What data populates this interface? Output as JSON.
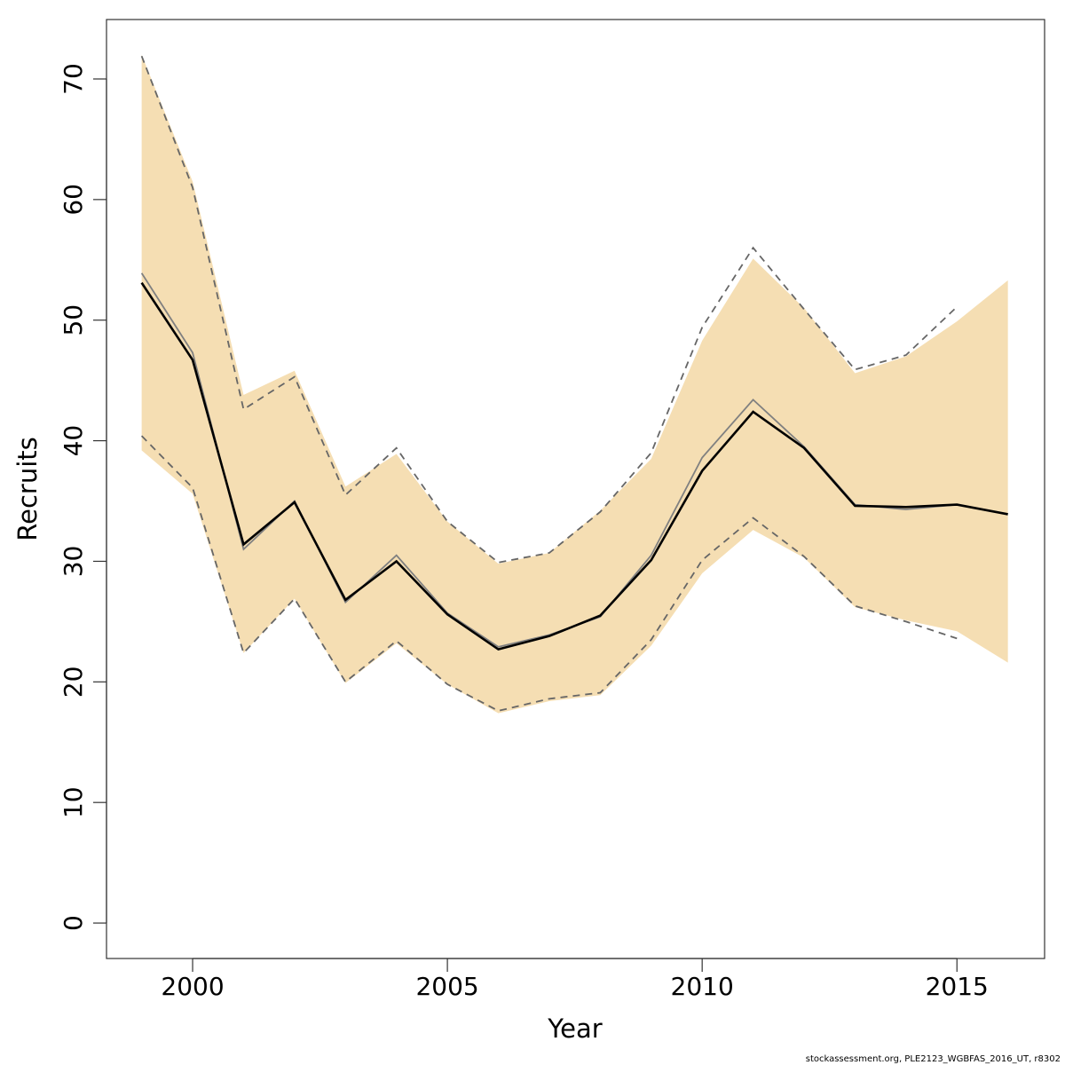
{
  "chart_data": {
    "type": "line",
    "x_label": "Year",
    "y_label": "Recruits",
    "footer": "stockassessment.org, PLE2123_WGBFAS_2016_UT, r8302",
    "x": [
      1999,
      2000,
      2001,
      2002,
      2003,
      2004,
      2005,
      2006,
      2007,
      2008,
      2009,
      2010,
      2011,
      2012,
      2013,
      2014,
      2015,
      2016
    ],
    "band": {
      "color": "#f5deb3",
      "lower": [
        39.2,
        35.6,
        22.4,
        26.9,
        19.9,
        23.2,
        19.8,
        17.4,
        18.4,
        18.9,
        23.0,
        29.0,
        32.6,
        30.3,
        26.2,
        25.1,
        24.2,
        21.6
      ],
      "upper": [
        72.0,
        61.5,
        43.8,
        45.8,
        36.2,
        38.9,
        33.3,
        29.8,
        30.7,
        34.2,
        38.5,
        48.3,
        55.1,
        51.0,
        45.6,
        47.0,
        49.9,
        53.3
      ]
    },
    "lines": [
      {
        "color": "#808080",
        "dash": false,
        "values": [
          53.9,
          47.3,
          31.0,
          35.0,
          26.6,
          30.5,
          25.7,
          22.9,
          23.9,
          25.4,
          30.5,
          38.6,
          43.4,
          39.5,
          34.7,
          34.3,
          34.7,
          null
        ]
      },
      {
        "color": "#666666",
        "dash": true,
        "values": [
          71.9,
          61.0,
          42.6,
          45.3,
          35.5,
          39.4,
          33.3,
          29.9,
          30.7,
          34.1,
          39.0,
          49.4,
          56.0,
          50.9,
          45.9,
          47.1,
          51.1,
          null
        ]
      },
      {
        "color": "#666666",
        "dash": true,
        "values": [
          40.4,
          36.1,
          22.4,
          26.9,
          20.0,
          23.4,
          19.8,
          17.6,
          18.6,
          19.1,
          23.5,
          30.1,
          33.6,
          30.4,
          26.3,
          25.0,
          23.6,
          null
        ]
      },
      {
        "color": "#000000",
        "dash": false,
        "values": [
          53.1,
          46.7,
          31.4,
          34.9,
          26.8,
          30.0,
          25.6,
          22.7,
          23.8,
          25.5,
          30.1,
          37.5,
          42.4,
          39.4,
          34.6,
          34.5,
          34.7,
          33.9
        ]
      }
    ],
    "xlim": [
      1998.31,
      2016.72
    ],
    "ylim": [
      -2.94,
      74.93
    ],
    "xticks": [
      2000,
      2005,
      2010,
      2015
    ],
    "yticks": [
      0,
      10,
      20,
      30,
      40,
      50,
      60,
      70
    ]
  }
}
